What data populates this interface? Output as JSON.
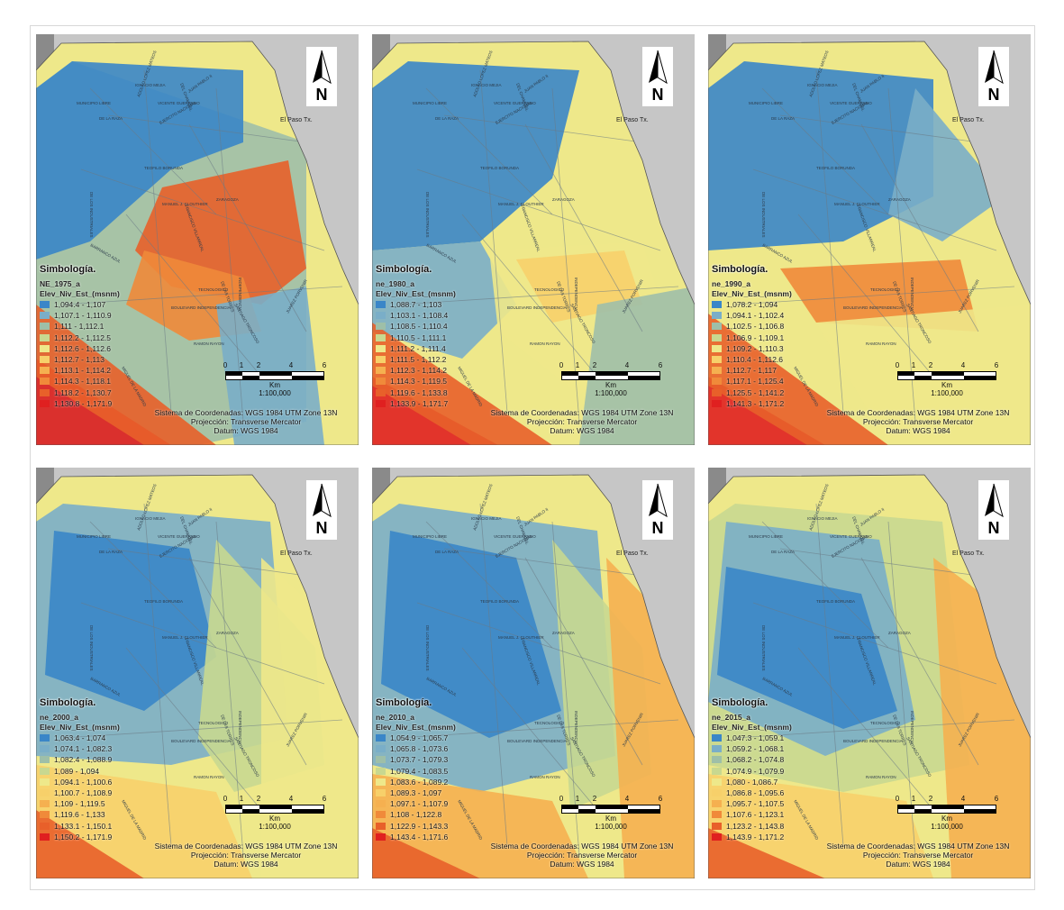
{
  "figure": {
    "map_common": {
      "north_label": "N",
      "city_label": "El Paso Tx.",
      "legend_title": "Simbología.",
      "field_name": "Elev_Niv_Est_(msnm)",
      "scale_ticks": [
        "0",
        "1",
        "2",
        "4",
        "6"
      ],
      "scale_unit": "Km",
      "scale_ratio": "1:100,000",
      "crs_lines": [
        "Sistema de Coordenadas: WGS 1984 UTM Zone 13N",
        "Projección: Transverse Mercator",
        "Datum: WGS 1984"
      ],
      "streets": [
        "IGNACIO MEJIA",
        "DEL CHAMIZAL",
        "ADOLFO LOPEZ MATEOS",
        "JUAN PABLO II",
        "DE LA RAZA",
        "MUNICIPIO LIBRE",
        "VICENTE GUERRERO",
        "EJERCITO NACIONAL",
        "TEOFILO BORUNDA",
        "DE LOS INDUSTRIALES",
        "FRANCISCO VILLARREAL",
        "MANUEL J. CLOUTHIER",
        "ZARAGOZA",
        "BARRANCO AZUL",
        "DE LAS TORRES",
        "TECNOLOGICO",
        "INDEPENDENCIA",
        "BOULEVARD INDEPENDENCIA",
        "RAMON RAYON",
        "SANTIAGO TRONCOSO",
        "JUAREZ PORVENIR",
        "MIGUEL DE LA MADRID"
      ]
    },
    "panels": [
      {
        "layer": "NE_1975_a",
        "legend": [
          "1,094.4 - 1,107",
          "1,107.1 - 1,110.9",
          "1,111 - 1,112.1",
          "1,112.2 - 1,112.5",
          "1,112.6 - 1,112.6",
          "1,112.7 - 1,113",
          "1,113.1 - 1,114.2",
          "1,114.3 - 1,118.1",
          "1,118.2 - 1,130.7",
          "1,130.8 - 1,171.9"
        ]
      },
      {
        "layer": "ne_1980_a",
        "legend": [
          "1,088.7 - 1,103",
          "1,103.1 - 1,108.4",
          "1,108.5 - 1,110.4",
          "1,110.5 - 1,111.1",
          "1,111.2 - 1,111.4",
          "1,111.5 - 1,112.2",
          "1,112.3 - 1,114.2",
          "1,114.3 - 1,119.5",
          "1,119.6 - 1,133.8",
          "1,133.9 - 1,171.7"
        ]
      },
      {
        "layer": "ne_1990_a",
        "legend": [
          "1,078.2 - 1,094",
          "1,094.1 - 1,102.4",
          "1,102.5 - 1,106.8",
          "1,106.9 - 1,109.1",
          "1,109.2 - 1,110.3",
          "1,110.4 - 1,112.6",
          "1,112.7 - 1,117",
          "1,117.1 - 1,125.4",
          "1,125.5 - 1,141.2",
          "1,141.3 - 1,171.2"
        ]
      },
      {
        "layer": "ne_2000_a",
        "legend": [
          "1,063.4 - 1,074",
          "1,074.1 - 1,082.3",
          "1,082.4 - 1,088.9",
          "1,089 - 1,094",
          "1,094.1 - 1,100.6",
          "1,100.7 - 1,108.9",
          "1,109 - 1,119.5",
          "1,119.6 - 1,133",
          "1,133.1 - 1,150.1",
          "1,150.2 - 1,171.9"
        ]
      },
      {
        "layer": "ne_2010_a",
        "legend": [
          "1,054.9 - 1,065.7",
          "1,065.8 - 1,073.6",
          "1,073.7 - 1,079.3",
          "1,079.4 - 1,083.5",
          "1,083.6 - 1,089.2",
          "1,089.3 - 1,097",
          "1,097.1 - 1,107.9",
          "1,108 - 1,122.8",
          "1,122.9 - 1,143.3",
          "1,143.4 - 1,171.6"
        ]
      },
      {
        "layer": "ne_2015_a",
        "legend": [
          "1,047.3 - 1,059.1",
          "1,059.2 - 1,068.1",
          "1,068.2 - 1,074.8",
          "1,074.9 - 1,079.9",
          "1,080 - 1,086.7",
          "1,086.8 - 1,095.6",
          "1,095.7 - 1,107.5",
          "1,107.6 - 1,123.1",
          "1,123.2 - 1,143.8",
          "1,143.9 - 1,171.2"
        ]
      }
    ],
    "legend_colors": [
      "#3a86c8",
      "#7aaec8",
      "#9ebfa8",
      "#c8d890",
      "#eee88a",
      "#f7d06a",
      "#f5b050",
      "#f08a3a",
      "#e8602a",
      "#e02020"
    ]
  }
}
